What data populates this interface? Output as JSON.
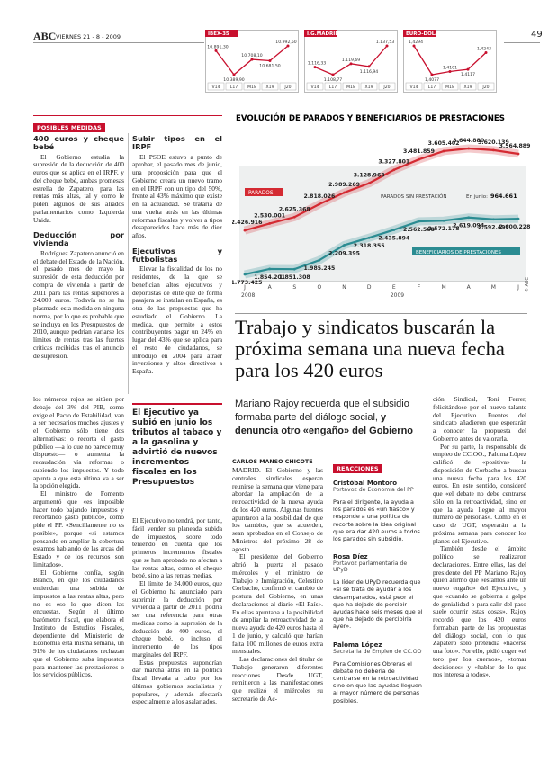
{
  "header": {
    "logo": "ABC",
    "date": "VIERNES 21 - 8 - 2009",
    "page": "49"
  },
  "markets": [
    {
      "name": "IBEX-35",
      "days": [
        "V14",
        "L17",
        "M18",
        "X19",
        "J20"
      ],
      "values": [
        10891.3,
        10389.9,
        10708.1,
        10681.5,
        10992.5
      ],
      "value_labels": [
        "10.891,30",
        "10.389,90",
        "10.708,10",
        "10.681,50",
        "10.992,50"
      ]
    },
    {
      "name": "I.G.MADRID",
      "days": [
        "V14",
        "L17",
        "M18",
        "X19",
        "J20"
      ],
      "values": [
        1116.33,
        1108.77,
        1119.69,
        1116.94,
        1137.53
      ],
      "value_labels": [
        "1.116,33",
        "1.108,77",
        "1.119,69",
        "1.116,94",
        "1.137,53"
      ]
    },
    {
      "name": "EURO-DÓLAR",
      "days": [
        "V14",
        "L17",
        "M18",
        "X19",
        "J20"
      ],
      "values": [
        1.4294,
        1.4077,
        1.4101,
        1.4117,
        1.4243
      ],
      "value_labels": [
        "1,4294",
        "1,4077",
        "1,4101",
        "1,4117",
        "1,4243"
      ]
    }
  ],
  "sidebar": {
    "label": "POSIBLES MEDIDAS",
    "columns": [
      [
        {
          "title": "400 euros y cheque bebé",
          "paragraphs": [
            "El Gobierno estudia la supresión de la deducción de 400 euros que se aplica en el IRPF, y del cheque bebé, ambas promesas estrella de Zapatero, para las rentas más altas, tal y como le piden algunos de sus aliados parlamentarios como Izquierda Unida."
          ]
        },
        {
          "title": "Deducción por vivienda",
          "paragraphs": [
            "Rodríguez Zapatero anunció en el debate del Estado de la Nación, el pasado mes de mayo la supresión de esta deducción por compra de vivienda a partir de 2011 para las rentas superiores a 24.000 euros. Todavía no se ha plasmado esta medida en ninguna norma, por lo que es probable que se incluya en los Presupuestos de 2010, aunque podrían variarse los límites de rentas tras las fuertes críticas recibidas tras el anuncio de supresión."
          ]
        }
      ],
      [
        {
          "title": "Subir tipos en el IRPF",
          "paragraphs": [
            "El PSOE estuvo a punto de aprobar, el pasado mes de junio, una proposición para que el Gobierno creara un nuevo tramo en el IRPF con un tipo del 50%, frente al 43% máximo que existe en la actualidad. Se trataría de una vuelta atrás en las últimas reformas fiscales y volver a tipos desaparecidos hace más de diez años."
          ]
        },
        {
          "title": "Ejecutivos y futbolistas",
          "paragraphs": [
            "Elevar la fiscalidad de los no residentes, de la que se benefician altos ejecutivos y deportistas de élite que de forma pasajera se instalan en España, es otra de las propuestas que ha estudiado el Gobierno. La medida, que permite a estos contribuyentes pagar un 24% en lugar del 43% que se aplica para el resto de ciudadanos, se introdujo en 2004 para atraer inversiones y altos directivos a España."
          ]
        }
      ]
    ]
  },
  "chart": {
    "type": "line",
    "title": "EVOLUCIÓN DE PARADOS Y BENEFICIARIOS DE PRESTACIONES",
    "x": [
      "J",
      "A",
      "S",
      "O",
      "N",
      "D",
      "E",
      "F",
      "M",
      "A",
      "M",
      "J"
    ],
    "years": [
      "2008",
      "2009"
    ],
    "series": [
      {
        "name": "PARADOS",
        "color": "#d42a32",
        "values": [
          2426916,
          2530001,
          2625368,
          2818026,
          2989269,
          3128963,
          3327801,
          3481859,
          3605402,
          3644880,
          3620139,
          3564889
        ],
        "value_labels": [
          "2.426.916",
          "2.530.001",
          "2.625.368",
          "2.818.026",
          "2.989.269",
          "3.128.963",
          "3.327.801",
          "3.481.859",
          "3.605.402",
          "3.644.880",
          "3.620.139",
          "3.564.889"
        ]
      },
      {
        "name": "BENEFICIARIOS DE PRESTACIONES",
        "color": "#2b8c92",
        "values": [
          1773425,
          1854201,
          1851308,
          1985245,
          2209395,
          2318355,
          2435894,
          2562568,
          2572178,
          2619094,
          2592497,
          2600228
        ],
        "value_labels": [
          "1.773.425",
          "1.854.201",
          "1.851.308",
          "1.985.245",
          "2.209.395",
          "2.318.355",
          "2.435.894",
          "2.562.568",
          "2.572.178",
          "2.619.094",
          "2.592.497",
          "2.600.228"
        ]
      }
    ],
    "gap_label": "PARADOS SIN PRESTACIÓN",
    "june_text": "En junio:",
    "june_number": "964.661",
    "source": "© ABC"
  },
  "article": {
    "headline": "Trabajo y sindicatos buscarán la próxima semana una nueva fecha para los 420 euros",
    "subhead": "Mariano Rajoy recuerda que el subsidio formaba parte del diálogo social, ",
    "subhead_bold": "y denuncia otro «engaño» del Gobierno",
    "col_left": [
      "los números rojos se sitúen por debajo del 3% del PIB, como exige el Pacto de Estabilidad, van a ser necesarios muchos ajustes y el Gobierno sólo tiene dos alternativas: o recorta el gasto público —a lo que no parece muy dispuesto— o aumenta la recaudación vía reformas o subiendo los impuestos. Y todo apunta a que esta última va a ser la opción elegida.",
      "El ministro de Fomento argumentó que «es imposible hacer todo bajando impuestos y recortando gasto público», como pide el PP. «Sencillamente no es posible», porque «si estamos pensando en ampliar la cobertura estamos hablando de las arcas del Estado y de los recursos son limitados».",
      "El Gobierno confía, según Blanco, en que los ciudadanos entiendan una subida de impuestos a las rentas altas, pero no es eso lo que dicen las encuestas. Según el último barómetro fiscal, que elabora el Instituto de Estudios Fiscales, dependiente del Ministerio de Economía esta misma semana, un 91% de los ciudadanos rechazan que el Gobierno suba impuestos para mantener las prestaciones o los servicios públicos."
    ],
    "highlight": "El Ejecutivo ya subió en junio los tributos al tabaco y a la gasolina y advirtió de nuevos incrementos fiscales en los Presupuestos",
    "col_mid": [
      "El Ejecutivo no tendrá, por tanto, fácil vender su planeada subida de impuestos, sobre todo teniendo en cuenta que los primeros incrementos fiscales que se han aprobado no afectan a las rentas altas, como el cheque bebé, sino a las rentas medias.",
      "El límite de 24.000 euros, que el Gobierno ha anunciado para suprimir la deducción por vivienda a partir de 2011, podría ser una referencia para otras medidas como la supresión de la deducción de 400 euros, el cheque bebé, o incluso el incremento de los tipos marginales del IRPF.",
      "Estas propuestas supondrían dar marcha atrás en la política fiscal llevada a cabo por los últimos gobiernos socialistas y populares, y además afectaría especialmente a los asalariados."
    ],
    "byline": "CARLOS MANSO CHICOTE",
    "col_main": [
      "MADRID. El Gobierno y las centrales sindicales esperan reunirse la semana que viene para abordar la ampliación de la retroactividad de la nueva ayuda de los 420 euros. Algunas fuentes apuntaron a la posibilidad de que los cambios, que se acuerden, sean aprobados en el Consejo de Ministros del próximo 28 de agosto.",
      "El presidente del Gobierno abrió la puerta el pasado miércoles y el ministro de Trabajo e Inmigración, Celestino Corbacho, confirmó el cambio de postura del Gobierno, en unas declaraciones al diario «El País». En ellas apuntaba a la posibilidad de ampliar la retroactividad de la nueva ayuda de 420 euros hasta el 1 de junio, y calculó que harían falta 100 millones de euros extra mensuales.",
      "Las declaraciones del titular de Trabajo generaron diferentes reacciones. Desde UGT, remitieron a las manifestaciones que realizó el miércoles su secretario de Ac-"
    ],
    "reactions": {
      "label": "REACCIONES",
      "items": [
        {
          "name": "Cristóbal Montoro",
          "role": "Portavoz de Economía del PP",
          "text": "Para el dirigente, la ayuda a los parados es «un fiasco» y responde a una política de recorte sobre la idea original que era dar 420 euros a todos los parados sin subsidio."
        },
        {
          "name": "Rosa Díez",
          "role": "Portavoz parlamentaria de UPyD",
          "text": "La líder de UPyD recuerda que «si se trata de ayudar a los desamparados, está peor el que ha dejado de percibir ayudas hace seis meses que el que ha dejado de percibirla ayer»."
        },
        {
          "name": "Paloma López",
          "role": "Secretaria de Empleo de CC.OO",
          "text": "Para Comisiones Obreras el debate no debería de centrarse en la retroactividad sino en que las ayudas lleguen al mayor número de personas posibles."
        }
      ]
    },
    "col_right": [
      "ción Sindical, Toni Ferrer, felicitándose por el nuevo talante del Ejecutivo. Fuentes del sindicato añadieron que esperarán a conocer la propuesta del Gobierno antes de valorarla.",
      "Por su parte, la responsable de empleo de CC.OO., Paloma López calificó de «positiva» la disposición de Corbacho a buscar una nueva fecha para los 420 euros. En este sentido, consideró que «el debate no debe centrarse sólo en la retroactividad, sino en que la ayuda llegue al mayor número de personas». Como en el caso de UGT, esperarán a la próxima semana para conocer los planes del Ejecutivo.",
      "También desde el ámbito político se realizaron declaraciones. Entre ellas, las del presidente del PP Mariano Rajoy quien afirmó que «estamos ante un nuevo engaño» del Ejecutivo, y que «cuando se gobierna a golpe de genialidad o para salir del paso suele ocurrir estas cosas». Rajoy recordó que los 420 euros formaban parte de las propuestas del diálogo social, con lo que Zapatero sólo pretendía «hacerse una foto». Por ello, pidió coger «el toro por los cuernos», «tomar decisiones» y «hablar de lo que nos interesa a todos»."
    ]
  }
}
